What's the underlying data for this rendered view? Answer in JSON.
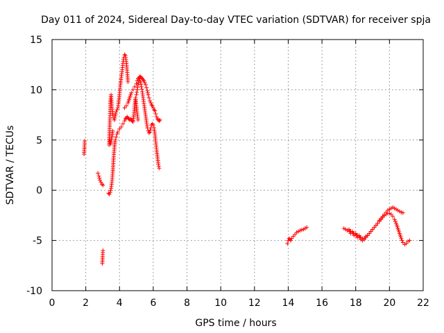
{
  "chart_data": {
    "type": "scatter",
    "title": "Day 011 of 2024, Sidereal Day-to-day VTEC variation (SDTVAR) for receiver spja",
    "xlabel": "GPS time / hours",
    "ylabel": "SDTVAR / TECUs",
    "xlim": [
      0,
      22
    ],
    "ylim": [
      -10,
      15
    ],
    "x_ticks": [
      0,
      2,
      4,
      6,
      8,
      10,
      12,
      14,
      16,
      18,
      20,
      22
    ],
    "y_ticks": [
      -10,
      -5,
      0,
      5,
      10,
      15
    ],
    "x_tick_labels": [
      "0",
      "2",
      "4",
      "6",
      "8",
      "10",
      "12",
      "14",
      "16",
      "18",
      "20",
      "22"
    ],
    "y_tick_labels": [
      "-10",
      "-5",
      "0",
      "5",
      "10",
      "15"
    ],
    "grid": true,
    "marker": "+",
    "series": [
      {
        "name": "SDTVAR",
        "color": "#ff0000",
        "segments": [
          {
            "x": [
              1.9,
              1.92,
              1.94
            ],
            "y": [
              3.6,
              4.3,
              4.9
            ]
          },
          {
            "x": [
              2.72,
              2.78,
              2.84,
              2.9,
              2.96,
              3.02
            ],
            "y": [
              1.7,
              1.4,
              1.0,
              0.8,
              0.6,
              0.5
            ]
          },
          {
            "x": [
              2.98,
              3.0,
              3.02
            ],
            "y": [
              -7.3,
              -6.6,
              -6.0
            ]
          },
          {
            "x": [
              3.35,
              3.4,
              3.45,
              3.5,
              3.55,
              3.6,
              3.65,
              3.7,
              3.75,
              3.8,
              3.85,
              3.9,
              4.0,
              4.1,
              4.2,
              4.3,
              4.35,
              4.4,
              4.45,
              4.5,
              4.55,
              4.6,
              4.65,
              4.7,
              4.75
            ],
            "y": [
              -0.3,
              -0.4,
              -0.2,
              0.2,
              0.8,
              1.8,
              3.2,
              4.3,
              5.0,
              5.3,
              5.6,
              5.8,
              6.1,
              6.3,
              6.6,
              6.9,
              7.1,
              7.2,
              7.3,
              7.2,
              7.1,
              7.0,
              7.1,
              7.0,
              6.9
            ]
          },
          {
            "x": [
              3.38,
              3.42,
              3.46,
              3.5,
              3.55,
              3.6,
              3.65,
              3.7,
              3.75,
              3.8,
              3.85,
              3.9,
              3.95,
              4.0,
              4.05,
              4.1,
              4.15,
              4.2,
              4.25,
              4.3,
              4.35,
              4.4,
              4.45,
              4.5
            ],
            "y": [
              4.5,
              6.5,
              8.8,
              9.5,
              8.2,
              7.5,
              7.2,
              7.0,
              7.4,
              7.8,
              8.0,
              8.2,
              8.8,
              9.5,
              10.5,
              11.2,
              11.8,
              12.6,
              13.2,
              13.5,
              13.4,
              12.8,
              11.9,
              10.8
            ]
          },
          {
            "x": [
              3.42,
              3.48,
              3.54,
              3.6
            ],
            "y": [
              5.0,
              4.6,
              5.2,
              5.9
            ]
          },
          {
            "x": [
              4.3,
              4.4,
              4.5,
              4.6,
              4.7,
              4.8,
              4.9,
              5.0,
              5.05,
              5.1,
              5.15,
              5.2,
              5.25,
              5.3,
              5.35,
              5.4,
              5.45,
              5.5,
              5.55,
              5.6,
              5.65,
              5.7,
              5.75,
              5.8,
              5.85,
              5.9,
              5.95,
              6.0,
              6.05,
              6.1,
              6.15,
              6.2,
              6.25,
              6.3,
              6.35,
              6.4
            ],
            "y": [
              8.2,
              8.4,
              8.7,
              9.2,
              9.7,
              10.0,
              10.3,
              10.6,
              10.9,
              11.1,
              11.2,
              11.3,
              11.3,
              11.2,
              11.1,
              11.0,
              10.9,
              10.7,
              10.5,
              10.2,
              9.9,
              9.5,
              9.2,
              8.9,
              8.7,
              8.5,
              8.4,
              8.2,
              8.0,
              7.9,
              7.6,
              7.3,
              7.1,
              7.0,
              6.9,
              7.0
            ]
          },
          {
            "x": [
              5.0,
              5.05,
              5.1,
              5.15,
              5.2,
              5.25,
              5.3,
              5.35,
              5.4,
              5.45,
              5.5,
              5.55,
              5.6,
              5.65,
              5.7,
              5.75,
              5.8,
              5.85,
              5.9,
              5.95,
              6.0,
              6.05,
              6.1,
              6.15,
              6.2,
              6.25,
              6.3,
              6.35
            ],
            "y": [
              9.5,
              10.0,
              10.5,
              10.9,
              11.1,
              10.8,
              10.3,
              9.8,
              9.2,
              8.6,
              8.0,
              7.4,
              6.8,
              6.2,
              5.9,
              5.7,
              5.8,
              6.2,
              6.5,
              6.6,
              6.5,
              6.2,
              5.6,
              4.8,
              4.0,
              3.3,
              2.6,
              2.2
            ]
          },
          {
            "x": [
              4.8,
              4.85,
              4.9,
              4.95,
              5.0,
              5.05,
              5.1
            ],
            "y": [
              6.8,
              7.5,
              8.5,
              9.2,
              8.4,
              7.6,
              7.0
            ]
          },
          {
            "x": [
              13.95,
              14.0,
              14.05,
              14.1,
              14.15,
              14.2,
              14.3,
              14.4,
              14.5,
              14.6,
              14.7,
              14.8,
              14.9,
              15.0,
              15.1
            ],
            "y": [
              -5.3,
              -5.0,
              -4.8,
              -4.9,
              -5.0,
              -4.8,
              -4.6,
              -4.4,
              -4.2,
              -4.1,
              -4.0,
              -3.95,
              -3.9,
              -3.8,
              -3.7
            ]
          },
          {
            "x": [
              17.3,
              17.4,
              17.5,
              17.6,
              17.7,
              17.8,
              17.9,
              18.0,
              18.1,
              18.2,
              18.3,
              18.4,
              18.5,
              18.6,
              18.7,
              18.8,
              18.9,
              19.0,
              19.1,
              19.2,
              19.3,
              19.4,
              19.5,
              19.6,
              19.7,
              19.8,
              19.9,
              20.0,
              20.1,
              20.2,
              20.3,
              20.4,
              20.5,
              20.6,
              20.7,
              20.8
            ],
            "y": [
              -3.8,
              -3.9,
              -4.0,
              -4.0,
              -4.1,
              -4.2,
              -4.3,
              -4.4,
              -4.5,
              -4.6,
              -4.7,
              -4.8,
              -4.9,
              -4.7,
              -4.5,
              -4.3,
              -4.1,
              -3.9,
              -3.7,
              -3.5,
              -3.3,
              -3.0,
              -2.8,
              -2.6,
              -2.4,
              -2.2,
              -2.0,
              -1.9,
              -1.8,
              -1.7,
              -1.8,
              -1.9,
              -2.0,
              -2.1,
              -2.2,
              -2.25
            ]
          },
          {
            "x": [
              17.6,
              17.7,
              17.8,
              17.9,
              18.0,
              18.1,
              18.2,
              18.3,
              18.4,
              18.5,
              18.6,
              18.7,
              18.8,
              18.9,
              19.0,
              19.1,
              19.2,
              19.3,
              19.4,
              19.5,
              19.6,
              19.7,
              19.8,
              19.9,
              20.0,
              20.1,
              20.2,
              20.3,
              20.4,
              20.5,
              20.6,
              20.7,
              20.8,
              20.9,
              21.0,
              21.1,
              21.2
            ],
            "y": [
              -3.9,
              -4.3,
              -4.1,
              -4.5,
              -4.3,
              -4.7,
              -4.5,
              -4.9,
              -5.0,
              -4.8,
              -4.6,
              -4.5,
              -4.3,
              -4.1,
              -3.9,
              -3.7,
              -3.5,
              -3.3,
              -3.1,
              -2.9,
              -2.7,
              -2.5,
              -2.4,
              -2.3,
              -2.3,
              -2.4,
              -2.6,
              -2.9,
              -3.3,
              -3.8,
              -4.3,
              -4.8,
              -5.2,
              -5.4,
              -5.3,
              -5.1,
              -5.0
            ]
          }
        ]
      }
    ]
  }
}
